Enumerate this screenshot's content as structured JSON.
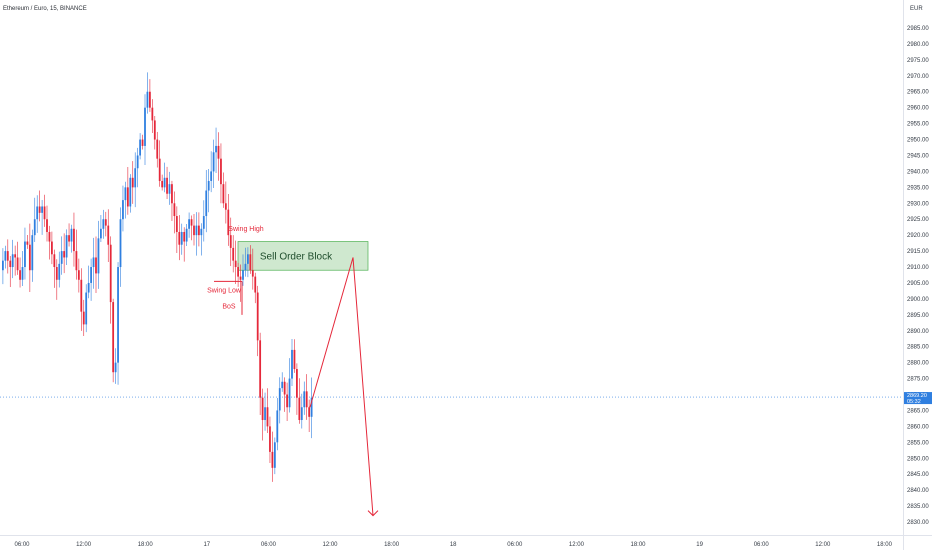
{
  "header": {
    "title": "Ethereum / Euro, 15, BINANCE",
    "currency": "EUR"
  },
  "colors": {
    "up": "#2f7fe0",
    "down": "#e5283a",
    "zone_fill": "#cfe8cf",
    "zone_stroke": "#4caf50",
    "arrow": "#e5283a",
    "price_tag": "#2f7fe0"
  },
  "chart_data": {
    "type": "candlestick",
    "ylim": [
      2826,
      2993
    ],
    "y_ticks": [
      2830,
      2835,
      2840,
      2845,
      2850,
      2855,
      2860,
      2865,
      2870,
      2875,
      2880,
      2885,
      2890,
      2895,
      2900,
      2905,
      2910,
      2915,
      2920,
      2925,
      2930,
      2935,
      2940,
      2945,
      2950,
      2955,
      2960,
      2965,
      2970,
      2975,
      2980,
      2985
    ],
    "x_ticks": [
      "06:00",
      "12:00",
      "18:00",
      "17",
      "06:00",
      "12:00",
      "18:00",
      "18",
      "06:00",
      "12:00",
      "18:00",
      "19",
      "06:00",
      "12:00",
      "18:00"
    ],
    "current_price": "2869.20",
    "countdown": "05:32",
    "annotations": {
      "swing_high": "Swing High",
      "swing_low": "Swing Low",
      "bos": "BoS",
      "order_block": "Sell Order Block"
    },
    "candles_close": [
      2912,
      2915,
      2912,
      2910,
      2914,
      2913,
      2909,
      2906,
      2910,
      2918,
      2917,
      2909,
      2920,
      2925,
      2929,
      2927,
      2929,
      2925,
      2921,
      2918,
      2914,
      2910,
      2906,
      2911,
      2915,
      2913,
      2920,
      2918,
      2922,
      2915,
      2909,
      2906,
      2896,
      2892,
      2902,
      2905,
      2910,
      2913,
      2908,
      2919,
      2922,
      2925,
      2923,
      2917,
      2899,
      2877,
      2880,
      2910,
      2925,
      2931,
      2935,
      2929,
      2938,
      2935,
      2941,
      2945,
      2950,
      2948,
      2960,
      2965,
      2960,
      2956,
      2950,
      2944,
      2937,
      2935,
      2938,
      2933,
      2936,
      2930,
      2926,
      2921,
      2917,
      2921,
      2918,
      2922,
      2925,
      2923,
      2920,
      2923,
      2920,
      2922,
      2926,
      2934,
      2937,
      2940,
      2946,
      2948,
      2944,
      2936,
      2930,
      2928,
      2920,
      2916,
      2912,
      2910,
      2907,
      2906,
      2909,
      2911,
      2914,
      2909,
      2907,
      2902,
      2887,
      2869,
      2862,
      2866,
      2860,
      2852,
      2847,
      2855,
      2865,
      2872,
      2874,
      2870,
      2866,
      2875,
      2884,
      2878,
      2869,
      2862,
      2866,
      2871,
      2866,
      2863,
      2869
    ]
  }
}
